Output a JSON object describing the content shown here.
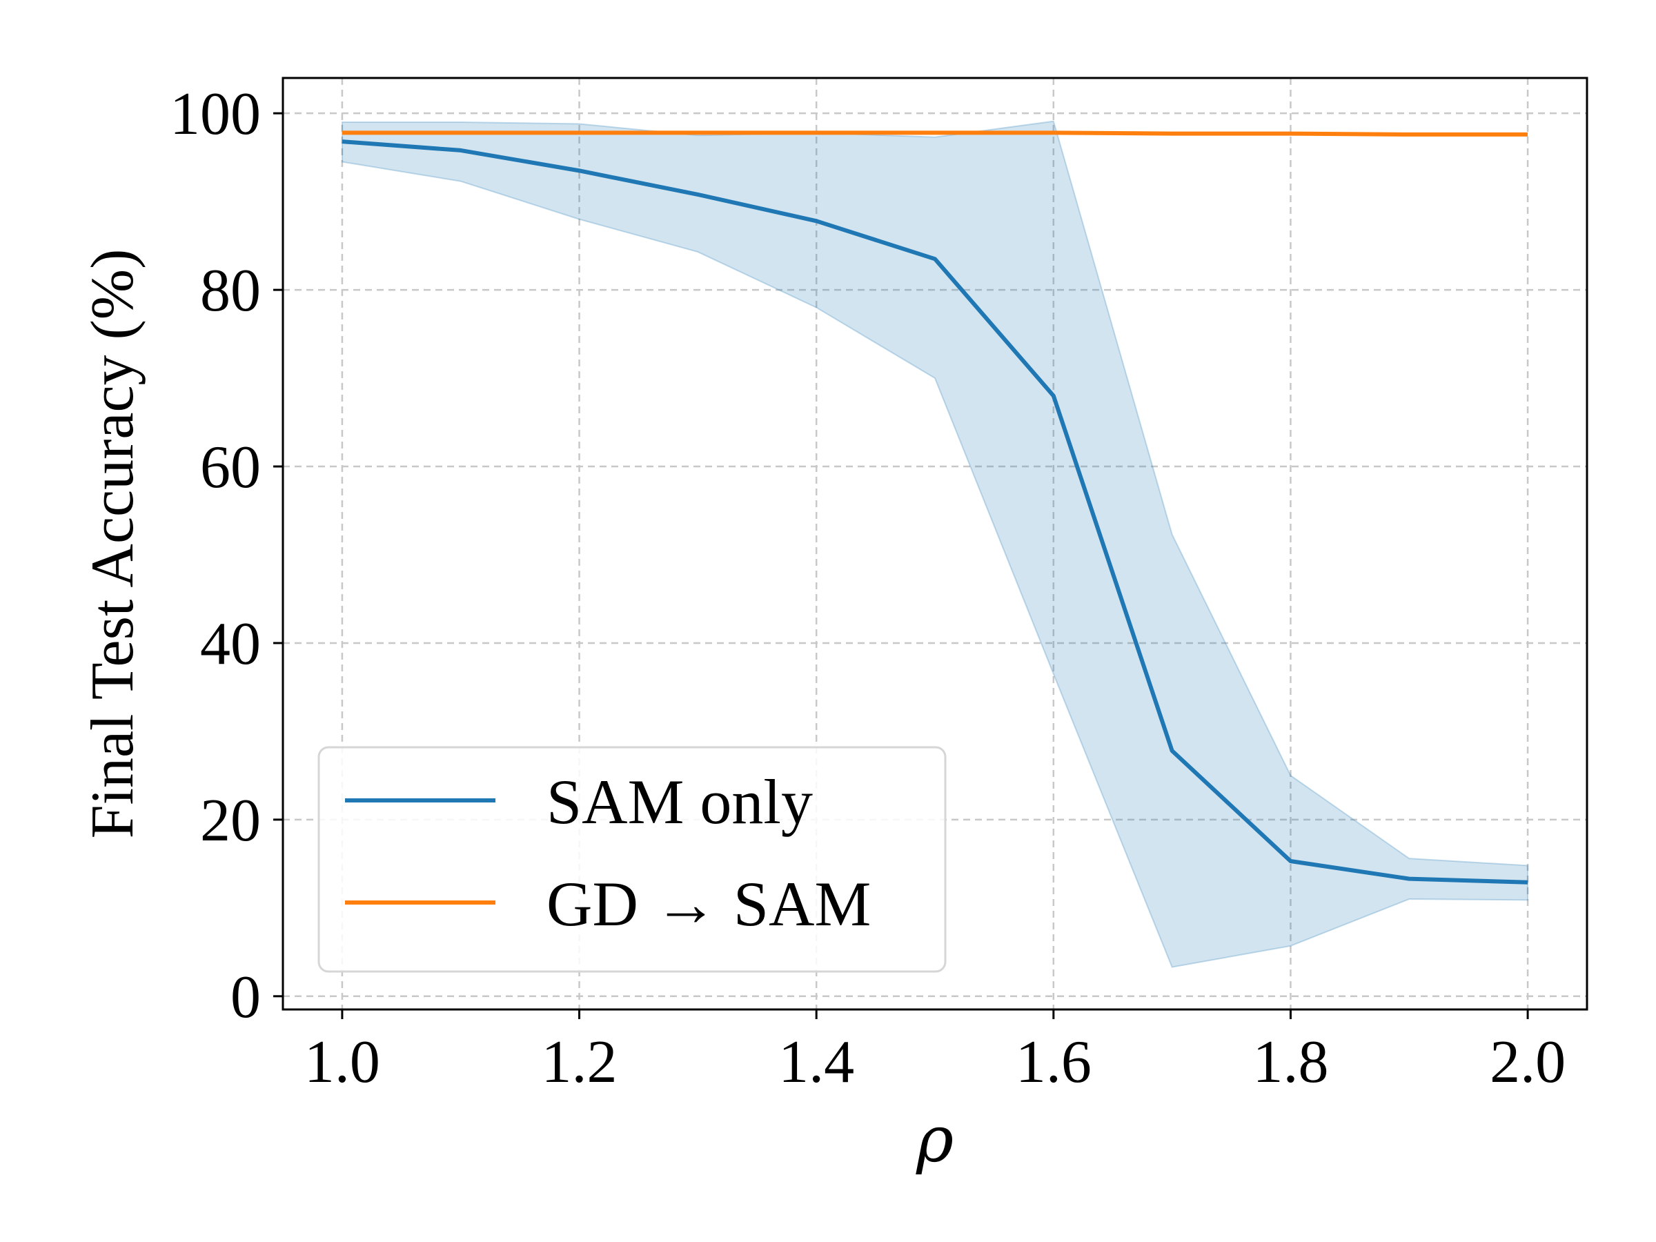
{
  "chart_data": {
    "type": "line",
    "title": "",
    "xlabel": "ρ",
    "ylabel": "Final Test Accuracy (%)",
    "xlim": [
      0.95,
      2.05
    ],
    "ylim": [
      -1.5,
      104
    ],
    "x_ticks": [
      "1.0",
      "1.2",
      "1.4",
      "1.6",
      "1.8",
      "2.0"
    ],
    "x_tick_values": [
      1.0,
      1.2,
      1.4,
      1.6,
      1.8,
      2.0
    ],
    "y_ticks": [
      "0",
      "20",
      "40",
      "60",
      "80",
      "100"
    ],
    "y_tick_values": [
      0,
      20,
      40,
      60,
      80,
      100
    ],
    "grid": true,
    "legend_position": "lower-left",
    "x": [
      1.0,
      1.1,
      1.2,
      1.3,
      1.4,
      1.5,
      1.6,
      1.7,
      1.8,
      1.9,
      2.0
    ],
    "series": [
      {
        "name": "SAM only",
        "color": "#1f77b4",
        "values": [
          96.8,
          95.8,
          93.5,
          90.8,
          87.8,
          83.5,
          68.0,
          27.8,
          15.3,
          13.3,
          12.9
        ],
        "band_lower": [
          94.5,
          92.3,
          88.0,
          84.3,
          78.0,
          70.0,
          36.5,
          3.3,
          5.7,
          11.0,
          10.9
        ],
        "band_upper": [
          99.0,
          99.0,
          98.8,
          97.5,
          97.8,
          97.3,
          99.1,
          52.3,
          25.0,
          15.6,
          14.8
        ],
        "band_color": "#1f77b4"
      },
      {
        "name": "GD → SAM",
        "color": "#ff7f0e",
        "values": [
          97.8,
          97.8,
          97.8,
          97.8,
          97.8,
          97.8,
          97.8,
          97.7,
          97.7,
          97.6,
          97.6
        ]
      }
    ]
  }
}
